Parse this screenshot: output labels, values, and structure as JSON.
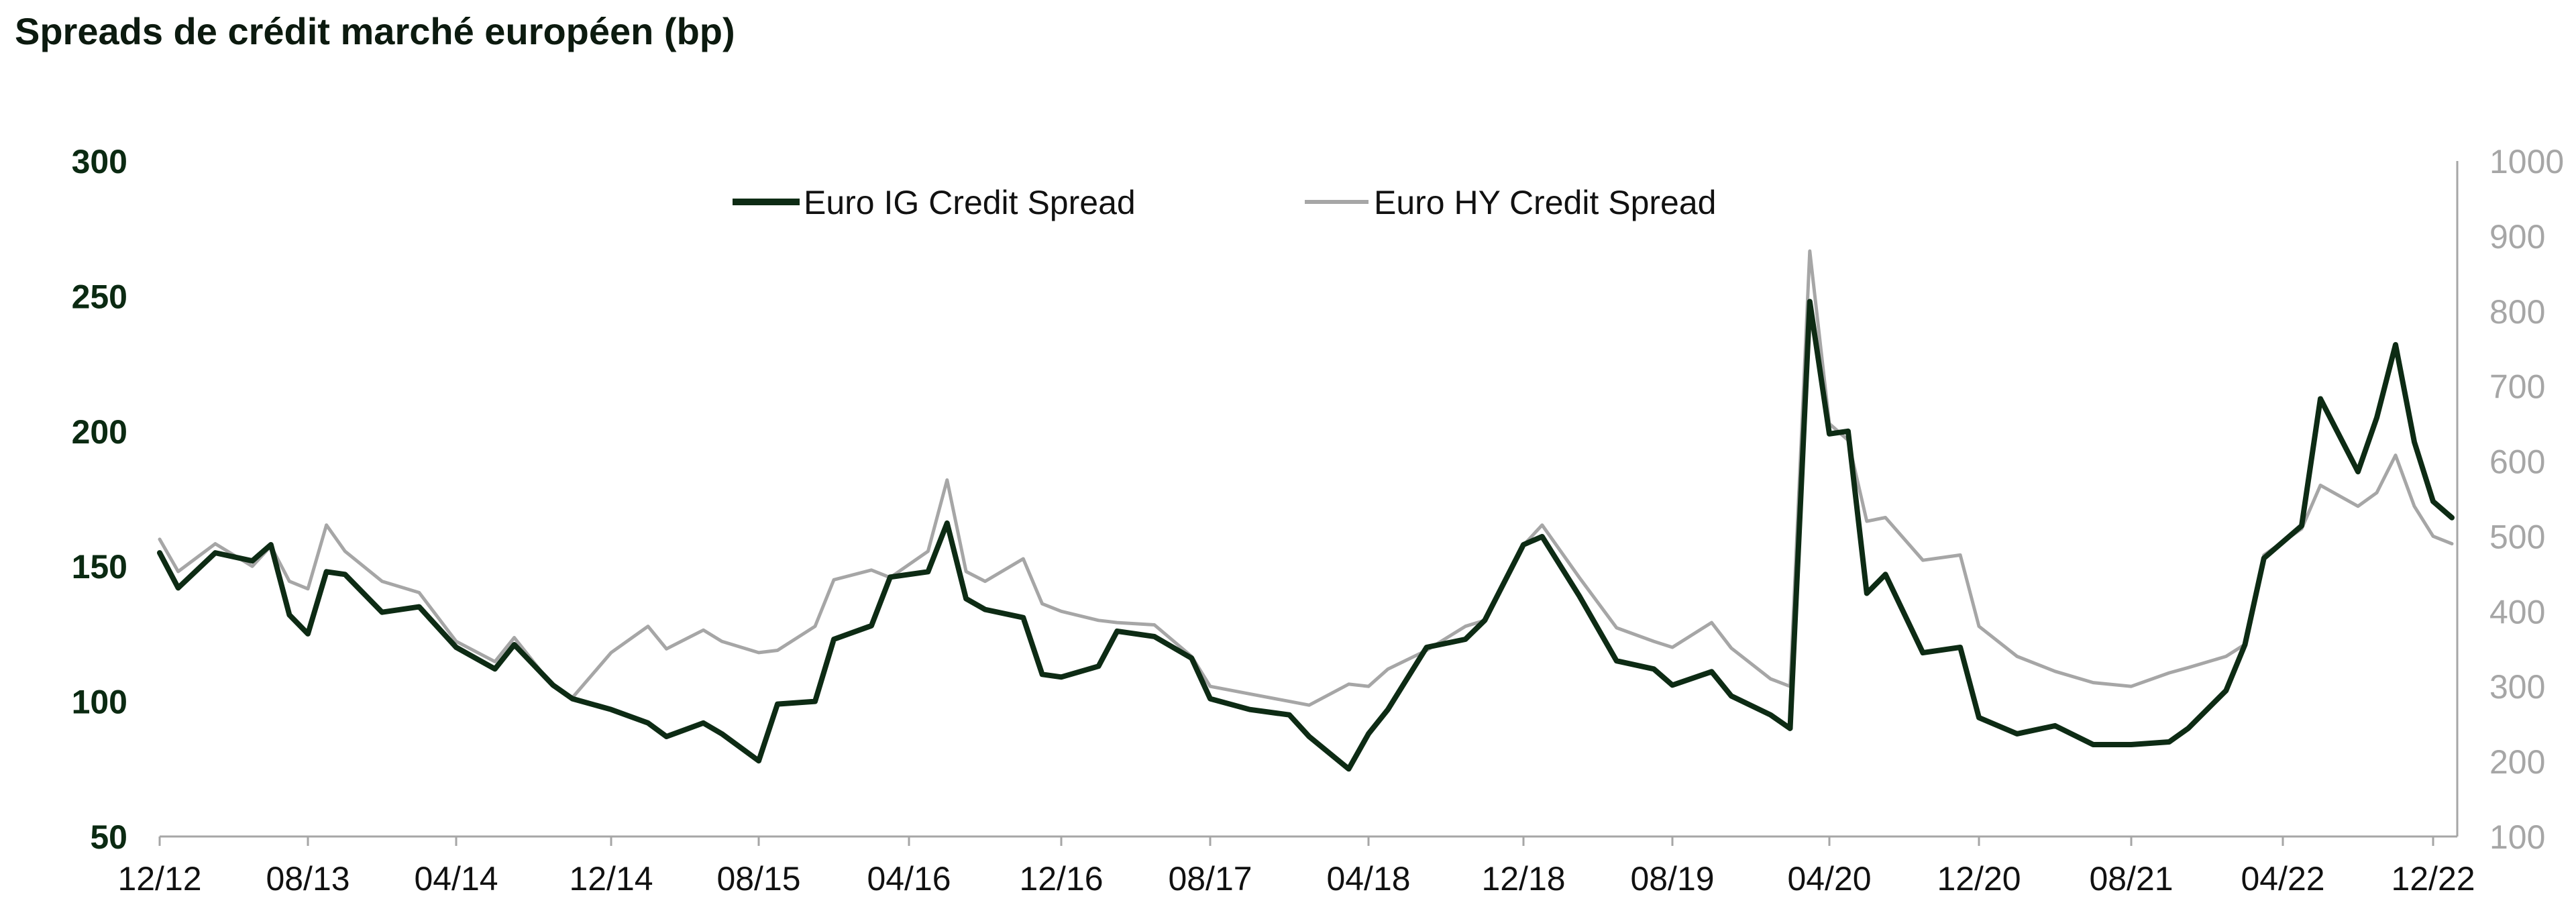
{
  "title": "Spreads de crédit marché européen (bp)",
  "colors": {
    "ig": "#0d2b14",
    "hy": "#a6a6a6",
    "axis": "#a6a6a6"
  },
  "chart_data": {
    "type": "line",
    "title": "Spreads de crédit marché européen (bp)",
    "x_tick_labels": [
      "12/12",
      "08/13",
      "04/14",
      "12/14",
      "08/15",
      "04/16",
      "12/16",
      "08/17",
      "04/18",
      "12/18",
      "08/19",
      "04/20",
      "12/20",
      "08/21",
      "04/22",
      "12/22"
    ],
    "y_left": {
      "ticks": [
        300,
        250,
        200,
        150,
        100,
        50
      ],
      "range": [
        50,
        300
      ]
    },
    "y_right": {
      "ticks": [
        1000,
        900,
        800,
        700,
        600,
        500,
        400,
        300,
        200,
        100
      ],
      "range": [
        100,
        1000
      ]
    },
    "legend_position": "top-center",
    "grid": false,
    "series": [
      {
        "name": "Euro IG Credit Spread",
        "axis": "left",
        "points": [
          [
            "12/12",
            155
          ],
          [
            "01/13",
            142
          ],
          [
            "03/13",
            155
          ],
          [
            "05/13",
            152
          ],
          [
            "06/13",
            158
          ],
          [
            "07/13",
            132
          ],
          [
            "08/13",
            125
          ],
          [
            "09/13",
            148
          ],
          [
            "10/13",
            147
          ],
          [
            "12/13",
            133
          ],
          [
            "02/14",
            135
          ],
          [
            "04/14",
            120
          ],
          [
            "06/14",
            112
          ],
          [
            "07/14",
            121
          ],
          [
            "09/14",
            106
          ],
          [
            "10/14",
            101
          ],
          [
            "12/14",
            97
          ],
          [
            "02/15",
            92
          ],
          [
            "03/15",
            87
          ],
          [
            "05/15",
            92
          ],
          [
            "06/15",
            88
          ],
          [
            "08/15",
            78
          ],
          [
            "09/15",
            99
          ],
          [
            "11/15",
            100
          ],
          [
            "12/15",
            123
          ],
          [
            "02/16",
            128
          ],
          [
            "03/16",
            146
          ],
          [
            "05/16",
            148
          ],
          [
            "06/16",
            166
          ],
          [
            "07/16",
            138
          ],
          [
            "08/16",
            134
          ],
          [
            "10/16",
            131
          ],
          [
            "11/16",
            110
          ],
          [
            "12/16",
            109
          ],
          [
            "02/17",
            113
          ],
          [
            "03/17",
            126
          ],
          [
            "05/17",
            124
          ],
          [
            "07/17",
            116
          ],
          [
            "08/17",
            101
          ],
          [
            "10/17",
            97
          ],
          [
            "12/17",
            95
          ],
          [
            "01/18",
            87
          ],
          [
            "03/18",
            75
          ],
          [
            "04/18",
            88
          ],
          [
            "05/18",
            97
          ],
          [
            "07/18",
            120
          ],
          [
            "09/18",
            123
          ],
          [
            "10/18",
            130
          ],
          [
            "12/18",
            158
          ],
          [
            "01/19",
            161
          ],
          [
            "03/19",
            139
          ],
          [
            "05/19",
            115
          ],
          [
            "07/19",
            112
          ],
          [
            "08/19",
            106
          ],
          [
            "10/19",
            111
          ],
          [
            "11/19",
            102
          ],
          [
            "01/20",
            95
          ],
          [
            "02/20",
            90
          ],
          [
            "03/20",
            248
          ],
          [
            "04/20",
            199
          ],
          [
            "05/20",
            200
          ],
          [
            "06/20",
            140
          ],
          [
            "07/20",
            147
          ],
          [
            "09/20",
            118
          ],
          [
            "11/20",
            120
          ],
          [
            "12/20",
            94
          ],
          [
            "02/21",
            88
          ],
          [
            "04/21",
            91
          ],
          [
            "06/21",
            84
          ],
          [
            "08/21",
            84
          ],
          [
            "10/21",
            85
          ],
          [
            "11/21",
            90
          ],
          [
            "01/22",
            104
          ],
          [
            "02/22",
            121
          ],
          [
            "03/22",
            153
          ],
          [
            "05/22",
            165
          ],
          [
            "06/22",
            212
          ],
          [
            "08/22",
            185
          ],
          [
            "09/22",
            205
          ],
          [
            "10/22",
            232
          ],
          [
            "11/22",
            196
          ],
          [
            "12/22",
            174
          ],
          [
            "12/22",
            168
          ]
        ]
      },
      {
        "name": "Euro HY Credit Spread",
        "axis": "right",
        "points": [
          [
            "12/12",
            496
          ],
          [
            "01/13",
            453
          ],
          [
            "03/13",
            490
          ],
          [
            "05/13",
            460
          ],
          [
            "06/13",
            487
          ],
          [
            "07/13",
            440
          ],
          [
            "08/13",
            430
          ],
          [
            "09/13",
            515
          ],
          [
            "10/13",
            480
          ],
          [
            "12/13",
            440
          ],
          [
            "02/14",
            425
          ],
          [
            "04/14",
            360
          ],
          [
            "06/14",
            333
          ],
          [
            "07/14",
            365
          ],
          [
            "09/14",
            300
          ],
          [
            "10/14",
            285
          ],
          [
            "12/14",
            345
          ],
          [
            "02/15",
            380
          ],
          [
            "03/15",
            350
          ],
          [
            "05/15",
            375
          ],
          [
            "06/15",
            360
          ],
          [
            "08/15",
            345
          ],
          [
            "09/15",
            348
          ],
          [
            "11/15",
            380
          ],
          [
            "12/15",
            442
          ],
          [
            "02/16",
            455
          ],
          [
            "03/16",
            445
          ],
          [
            "05/16",
            480
          ],
          [
            "06/16",
            575
          ],
          [
            "07/16",
            453
          ],
          [
            "08/16",
            440
          ],
          [
            "10/16",
            470
          ],
          [
            "11/16",
            410
          ],
          [
            "12/16",
            400
          ],
          [
            "02/17",
            388
          ],
          [
            "03/17",
            385
          ],
          [
            "05/17",
            382
          ],
          [
            "07/17",
            340
          ],
          [
            "08/17",
            300
          ],
          [
            "10/17",
            290
          ],
          [
            "12/17",
            280
          ],
          [
            "01/18",
            275
          ],
          [
            "03/18",
            303
          ],
          [
            "04/18",
            300
          ],
          [
            "05/18",
            323
          ],
          [
            "07/18",
            348
          ],
          [
            "09/18",
            380
          ],
          [
            "10/18",
            388
          ],
          [
            "12/18",
            488
          ],
          [
            "01/19",
            515
          ],
          [
            "03/19",
            445
          ],
          [
            "05/19",
            378
          ],
          [
            "07/19",
            360
          ],
          [
            "08/19",
            352
          ],
          [
            "10/19",
            385
          ],
          [
            "11/19",
            351
          ],
          [
            "01/20",
            310
          ],
          [
            "02/20",
            300
          ],
          [
            "03/20",
            880
          ],
          [
            "04/20",
            650
          ],
          [
            "05/20",
            628
          ],
          [
            "06/20",
            520
          ],
          [
            "07/20",
            525
          ],
          [
            "09/20",
            468
          ],
          [
            "11/20",
            475
          ],
          [
            "12/20",
            380
          ],
          [
            "02/21",
            340
          ],
          [
            "04/21",
            320
          ],
          [
            "06/21",
            305
          ],
          [
            "08/21",
            300
          ],
          [
            "10/21",
            318
          ],
          [
            "11/21",
            325
          ],
          [
            "01/22",
            340
          ],
          [
            "02/22",
            356
          ],
          [
            "03/22",
            475
          ],
          [
            "05/22",
            510
          ],
          [
            "06/22",
            568
          ],
          [
            "08/22",
            540
          ],
          [
            "09/22",
            558
          ],
          [
            "10/22",
            608
          ],
          [
            "11/22",
            540
          ],
          [
            "12/22",
            500
          ],
          [
            "12/22",
            490
          ]
        ]
      }
    ]
  }
}
